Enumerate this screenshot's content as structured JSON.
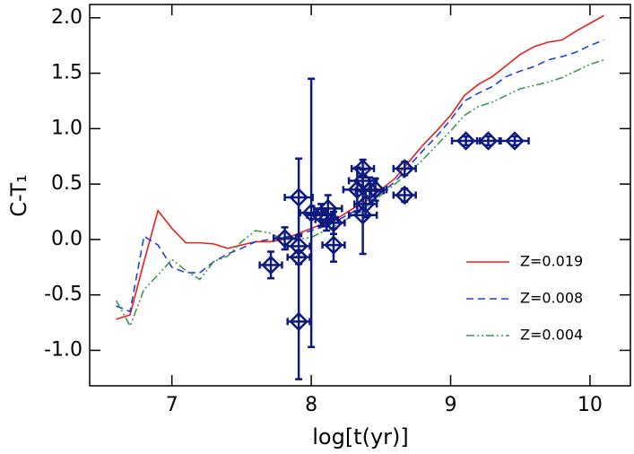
{
  "chart_data": {
    "type": "line",
    "x_label": "log[t(yr)]",
    "y_label": "C-T₁",
    "xlim": [
      6.41,
      10.29
    ],
    "ylim": [
      -1.32,
      2.12
    ],
    "xticks": [
      7,
      8,
      9,
      10
    ],
    "yticks": [
      {
        "value": -1,
        "label": "-1.0"
      },
      {
        "value": -0.5,
        "label": "-0.5"
      },
      {
        "value": 0,
        "label": "0.0"
      },
      {
        "value": 0.5,
        "label": "0.5"
      },
      {
        "value": 1,
        "label": "1.0"
      },
      {
        "value": 1.5,
        "label": "1.5"
      },
      {
        "value": 2,
        "label": "2.0"
      }
    ],
    "legend": "lower right",
    "series": [
      {
        "name": "Z=0.019",
        "color": "#e8201c",
        "dash": "solid",
        "x": [
          6.6,
          6.7,
          6.8,
          6.9,
          7.0,
          7.1,
          7.2,
          7.3,
          7.4,
          7.5,
          7.6,
          7.7,
          7.8,
          7.9,
          8.0,
          8.1,
          8.2,
          8.3,
          8.4,
          8.5,
          8.6,
          8.7,
          8.8,
          8.9,
          9.0,
          9.1,
          9.2,
          9.3,
          9.4,
          9.5,
          9.6,
          9.7,
          9.8,
          9.9,
          10.0,
          10.1
        ],
        "values": [
          -0.72,
          -0.68,
          -0.2,
          0.26,
          0.1,
          -0.03,
          -0.03,
          -0.04,
          -0.08,
          -0.05,
          -0.02,
          -0.02,
          0.0,
          0.05,
          0.1,
          0.15,
          0.2,
          0.28,
          0.35,
          0.45,
          0.55,
          0.7,
          0.85,
          0.98,
          1.12,
          1.3,
          1.4,
          1.47,
          1.57,
          1.67,
          1.74,
          1.78,
          1.8,
          1.88,
          1.95,
          2.02
        ]
      },
      {
        "name": "Z=0.008",
        "color": "#1f3fe0",
        "dash": "dashed",
        "x": [
          6.6,
          6.7,
          6.8,
          6.9,
          7.0,
          7.1,
          7.2,
          7.3,
          7.4,
          7.5,
          7.6,
          7.7,
          7.8,
          7.9,
          8.0,
          8.1,
          8.2,
          8.3,
          8.4,
          8.5,
          8.6,
          8.7,
          8.8,
          8.9,
          9.0,
          9.1,
          9.2,
          9.3,
          9.4,
          9.5,
          9.6,
          9.7,
          9.8,
          9.9,
          10.0,
          10.1
        ],
        "values": [
          -0.6,
          -0.65,
          0.03,
          -0.05,
          -0.25,
          -0.3,
          -0.3,
          -0.2,
          -0.13,
          -0.08,
          -0.02,
          0.0,
          0.02,
          0.04,
          0.08,
          0.12,
          0.18,
          0.25,
          0.32,
          0.42,
          0.52,
          0.66,
          0.8,
          0.93,
          1.08,
          1.25,
          1.32,
          1.38,
          1.47,
          1.52,
          1.56,
          1.62,
          1.65,
          1.69,
          1.75,
          1.8
        ]
      },
      {
        "name": "Z=0.004",
        "color": "#3a9a50",
        "dash": "dashdotdot",
        "x": [
          6.6,
          6.7,
          6.8,
          6.9,
          7.0,
          7.1,
          7.2,
          7.3,
          7.4,
          7.5,
          7.6,
          7.7,
          7.8,
          7.9,
          8.0,
          8.1,
          8.2,
          8.3,
          8.4,
          8.5,
          8.6,
          8.7,
          8.8,
          8.9,
          9.0,
          9.1,
          9.2,
          9.3,
          9.4,
          9.5,
          9.6,
          9.7,
          9.8,
          9.9,
          10.0,
          10.1
        ],
        "values": [
          -0.55,
          -0.78,
          -0.45,
          -0.32,
          -0.18,
          -0.28,
          -0.36,
          -0.2,
          -0.15,
          -0.02,
          0.08,
          0.06,
          0.0,
          0.0,
          0.02,
          0.08,
          0.14,
          0.22,
          0.3,
          0.4,
          0.5,
          0.6,
          0.72,
          0.85,
          0.98,
          1.12,
          1.2,
          1.24,
          1.3,
          1.36,
          1.39,
          1.42,
          1.46,
          1.52,
          1.58,
          1.62
        ]
      },
      {
        "type": "scatter",
        "color": "#0c1a80",
        "x": [
          7.71,
          7.81,
          7.91,
          7.91,
          7.91,
          7.91,
          8.0,
          8.07,
          8.11,
          8.12,
          8.16,
          8.16,
          8.33,
          8.37,
          8.37,
          8.39,
          8.37,
          8.42,
          8.46,
          8.67,
          8.67,
          9.11,
          9.27,
          9.46
        ],
        "values": [
          -0.23,
          0.01,
          0.38,
          -0.06,
          -0.16,
          -0.74,
          0.24,
          0.22,
          0.18,
          0.28,
          0.15,
          -0.05,
          0.45,
          0.64,
          0.53,
          0.32,
          0.22,
          0.44,
          0.45,
          0.4,
          0.64,
          0.89,
          0.89,
          0.89
        ],
        "xerr": [
          0.08,
          0.08,
          0.1,
          0.08,
          0.08,
          0.08,
          0.08,
          0.1,
          0.08,
          0.1,
          0.08,
          0.08,
          0.1,
          0.08,
          0.1,
          0.08,
          0.1,
          0.1,
          0.08,
          0.08,
          0.08,
          0.1,
          0.08,
          0.1
        ],
        "yerr": [
          0.12,
          0.1,
          0.35,
          0.1,
          0.06,
          0.52,
          1.21,
          0.1,
          0.1,
          0.12,
          0.1,
          0.15,
          0.2,
          0.08,
          0.1,
          0.12,
          0.35,
          0.12,
          0.1,
          0.06,
          0.06,
          0.04,
          0.04,
          0.04
        ]
      }
    ]
  }
}
